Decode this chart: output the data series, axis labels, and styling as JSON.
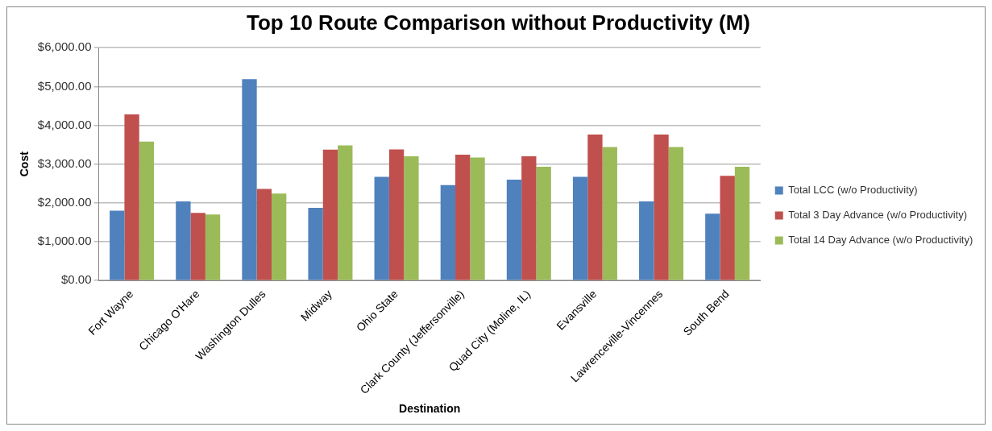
{
  "chart_data": {
    "type": "bar",
    "title": "Top 10 Route Comparison without Productivity (M)",
    "xlabel": "Destination",
    "ylabel": "Cost",
    "categories": [
      "Fort Wayne",
      "Chicago O'Hare",
      "Washington Dulles",
      "Midway",
      "Ohio State",
      "Clark County (Jeffersonville)",
      "Quad City (Moline, IL)",
      "Evansville",
      "Lawrenceville-Vincennes",
      "South Bend"
    ],
    "series": [
      {
        "name": "Total LCC (w/o Productivity)",
        "color": "#4f81bd",
        "values": [
          1800,
          2040,
          5190,
          1870,
          2670,
          2460,
          2600,
          2670,
          2040,
          1720
        ]
      },
      {
        "name": "Total 3 Day Advance (w/o Productivity)",
        "color": "#c0504d",
        "values": [
          4280,
          1740,
          2360,
          3370,
          3380,
          3240,
          3200,
          3760,
          3760,
          2700
        ]
      },
      {
        "name": "Total 14 Day Advance (w/o Productivity)",
        "color": "#9bbb59",
        "values": [
          3580,
          1700,
          2240,
          3480,
          3200,
          3170,
          2930,
          3440,
          3440,
          2930
        ]
      }
    ],
    "ylim": [
      0,
      6000
    ],
    "yticks": [
      {
        "value": 0,
        "label": "$0.00"
      },
      {
        "value": 1000,
        "label": "$1,000.00"
      },
      {
        "value": 2000,
        "label": "$2,000.00"
      },
      {
        "value": 3000,
        "label": "$3,000.00"
      },
      {
        "value": 4000,
        "label": "$4,000.00"
      },
      {
        "value": 5000,
        "label": "$5,000.00"
      },
      {
        "value": 6000,
        "label": "$6,000.00"
      }
    ],
    "grid": "y",
    "legend": "right"
  }
}
